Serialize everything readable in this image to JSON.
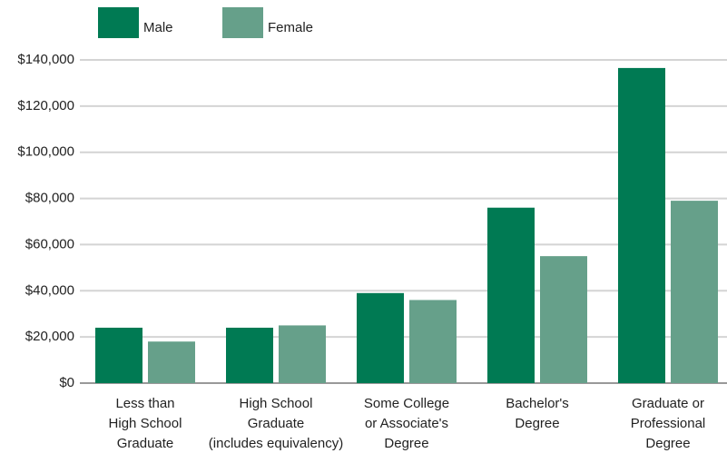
{
  "chart_data": {
    "type": "bar",
    "categories": [
      "Less than\nHigh School\nGraduate",
      "High School\nGraduate\n(includes equivalency)",
      "Some College\nor Associate's\nDegree",
      "Bachelor's\nDegree",
      "Graduate or\nProfessional\nDegree"
    ],
    "series": [
      {
        "name": "Male",
        "color": "#007a53",
        "values": [
          24000,
          24000,
          39000,
          76000,
          136500
        ]
      },
      {
        "name": "Female",
        "color": "#66a08a",
        "values": [
          18000,
          25000,
          36000,
          55000,
          79000
        ]
      }
    ],
    "ylim": [
      0,
      140000
    ],
    "yticks": [
      {
        "value": 0,
        "label": "$0"
      },
      {
        "value": 20000,
        "label": "$20,000"
      },
      {
        "value": 40000,
        "label": "$40,000"
      },
      {
        "value": 60000,
        "label": "$60,000"
      },
      {
        "value": 80000,
        "label": "$80,000"
      },
      {
        "value": 100000,
        "label": "$100,000"
      },
      {
        "value": 120000,
        "label": "$120,000"
      },
      {
        "value": 140000,
        "label": "$140,000"
      }
    ],
    "grid": true,
    "legend": "top"
  }
}
